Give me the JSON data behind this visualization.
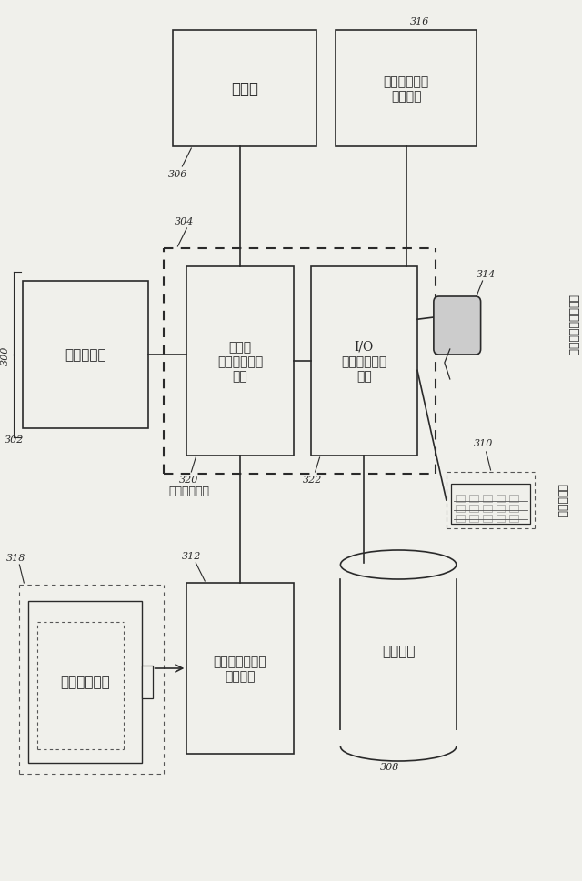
{
  "bg_color": "#f0f0eb",
  "line_color": "#2a2a2a",
  "labels": {
    "memory": "メモリ",
    "network_adapter": "ネットワーク\nアダプタ",
    "processor": "プロセッサ",
    "memory_ctrl_hub": "メモリ\nコントローラ\nハブ",
    "io_ctrl_hub": "I/O\nコントローラ\nハブ",
    "chipset": "チップセット",
    "graphics_adapter": "グラフィックス\nアダプタ",
    "display": "ディスプレイ",
    "storage": "記憶装置",
    "keyboard": "キーボード",
    "pointing_device": "ボインティング装置"
  }
}
